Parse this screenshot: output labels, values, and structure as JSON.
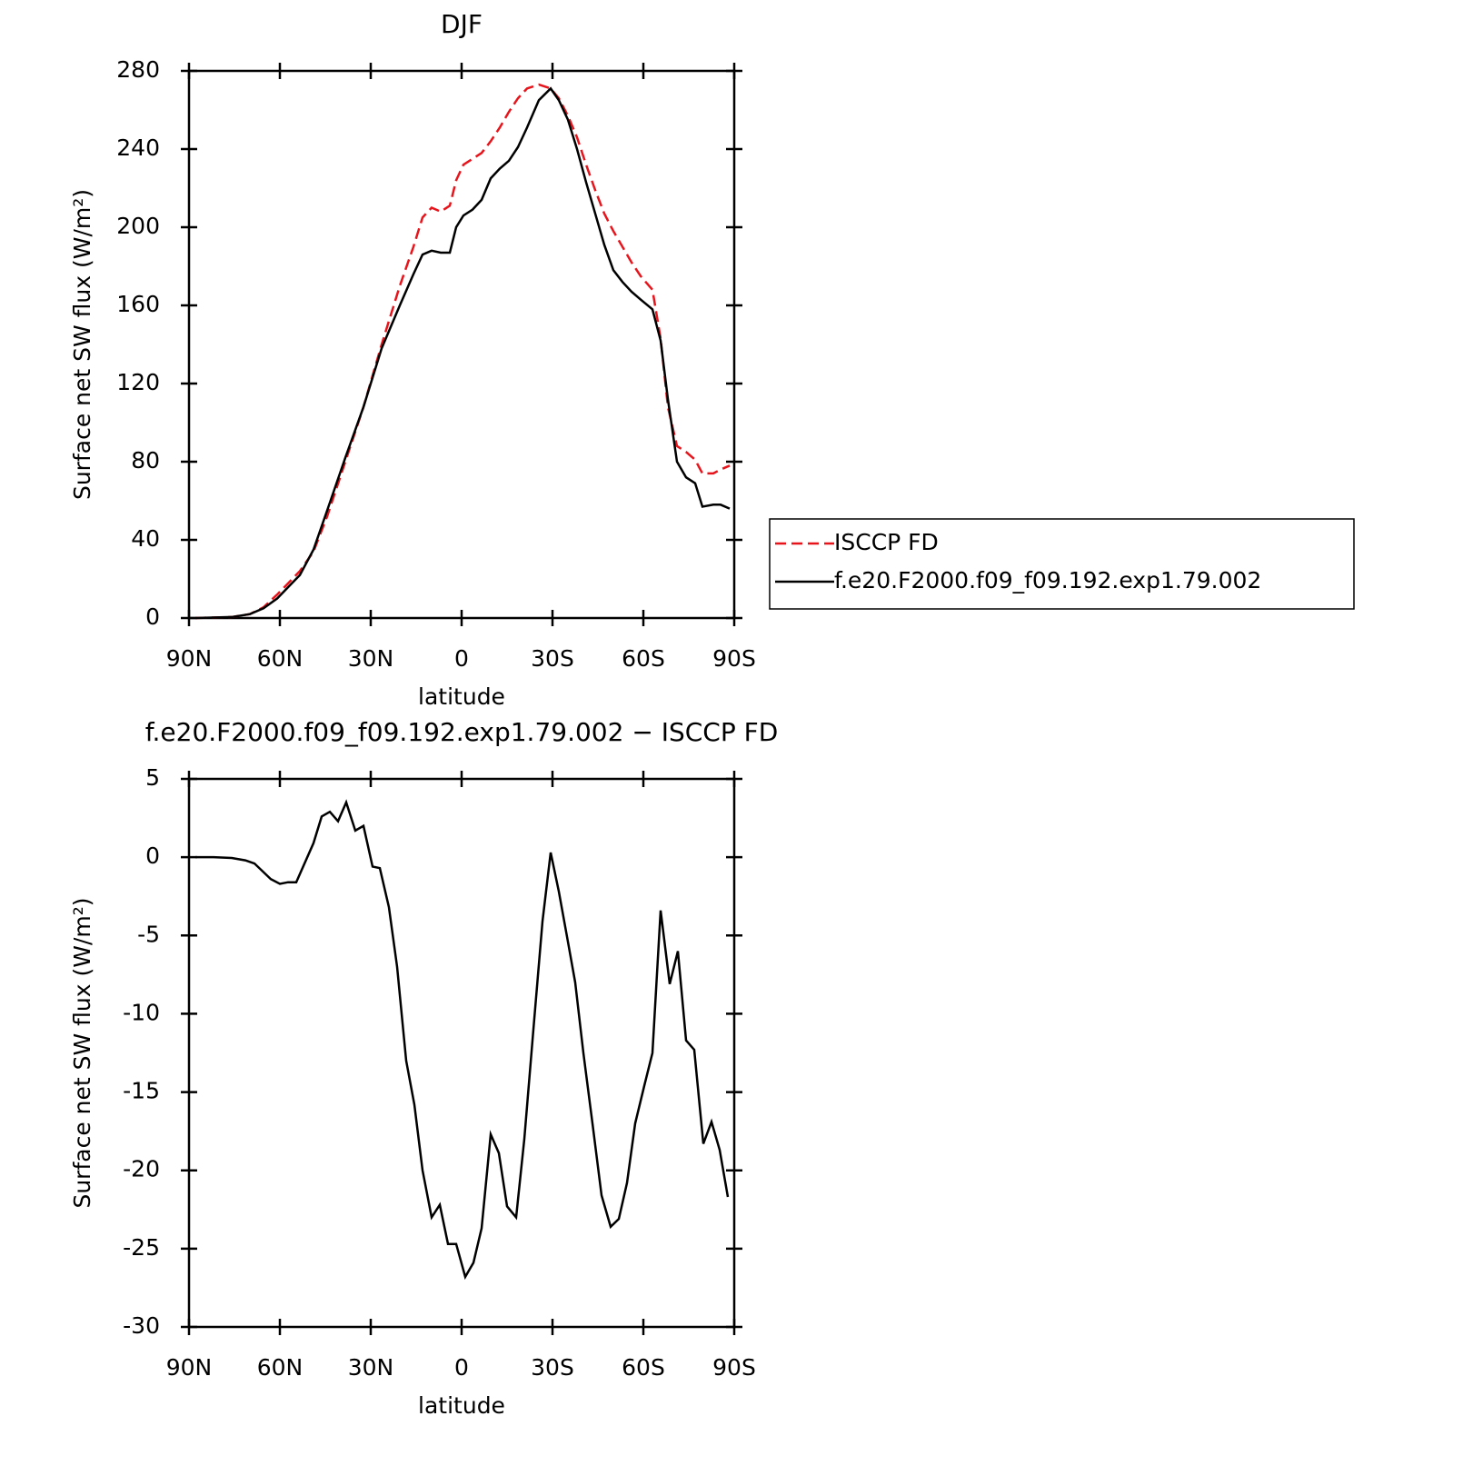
{
  "chart_data": [
    {
      "type": "line",
      "title": "DJF",
      "xlabel": "latitude",
      "ylabel": "Surface net SW flux (W/m²)",
      "x": [
        87.9,
        75.9,
        69.9,
        65.4,
        60.9,
        53.4,
        48.9,
        44.4,
        38.4,
        32.4,
        26.4,
        20.4,
        15.9,
        12.9,
        9.9,
        6.9,
        3.9,
        1.8,
        -0.6,
        -3.6,
        -6.6,
        -9.6,
        -12.6,
        -15.6,
        -18.6,
        -21.6,
        -25.5,
        -29.4,
        -32.1,
        -35.1,
        -38.1,
        -41.1,
        -44.1,
        -47.1,
        -50.1,
        -53.1,
        -56.1,
        -59.1,
        -63,
        -65.7,
        -68.1,
        -71.1,
        -74.1,
        -77.1,
        -79.5,
        -83.1,
        -85.5,
        -88.5
      ],
      "series": [
        {
          "name": "ISCCP FD",
          "color": "#e8141c",
          "linestyle": "dashed",
          "values": [
            0,
            0.5,
            2,
            5.5,
            12,
            24,
            34,
            52,
            80,
            108,
            140,
            170,
            190,
            205,
            210,
            208,
            211,
            224,
            232,
            235,
            238,
            244,
            251,
            259,
            266,
            271,
            273,
            271,
            266,
            257,
            246,
            232,
            219,
            207,
            198,
            190,
            182,
            175,
            168,
            143,
            108,
            88,
            85,
            81,
            74,
            74,
            76,
            78
          ]
        },
        {
          "name": "f.e20.F2000.f09_f09.192.exp1.79.002",
          "color": "#000000",
          "linestyle": "solid",
          "values": [
            0,
            0.5,
            2,
            5,
            10,
            22,
            35,
            55,
            82,
            108,
            138,
            160,
            176,
            186,
            188,
            187,
            187,
            200,
            206,
            209,
            214,
            225,
            230,
            234,
            241,
            251,
            265,
            271,
            265,
            255,
            240,
            223,
            207,
            191,
            178,
            172,
            167,
            163,
            158,
            142,
            112,
            80,
            72,
            69,
            57,
            58,
            58,
            56
          ]
        }
      ],
      "xlim": [
        90,
        -90
      ],
      "xticks": [
        {
          "value": 90,
          "label": "90N"
        },
        {
          "value": 60,
          "label": "60N"
        },
        {
          "value": 30,
          "label": "30N"
        },
        0,
        {
          "value": -30,
          "label": "30S"
        },
        {
          "value": -60,
          "label": "60S"
        },
        {
          "value": -90,
          "label": "90S"
        }
      ],
      "ylim": [
        0,
        280
      ],
      "yticks": [
        0,
        40,
        80,
        120,
        160,
        200,
        240,
        280
      ],
      "legend": "right"
    },
    {
      "type": "line",
      "title": "f.e20.F2000.f09_f09.192.exp1.79.002 − ISCCP FD",
      "xlabel": "latitude",
      "ylabel": "Surface net SW flux (W/m²)",
      "x": [
        87.9,
        81.9,
        75.9,
        71.4,
        68.4,
        63,
        60,
        57.3,
        54.6,
        48.9,
        46.2,
        43.5,
        40.8,
        38.1,
        35.1,
        32.4,
        29.4,
        27,
        24,
        21.3,
        18.3,
        15.6,
        12.9,
        9.9,
        7.2,
        4.5,
        1.8,
        -1.2,
        -3.9,
        -6.6,
        -9.6,
        -12.3,
        -15,
        -18,
        -20.7,
        -23.7,
        -26.7,
        -29.4,
        -32.1,
        -35.1,
        -37.5,
        -40.2,
        -43.2,
        -46.2,
        -49.2,
        -51.9,
        -54.6,
        -57.3,
        -60.3,
        -63,
        -65.7,
        -68.7,
        -71.4,
        -74.1,
        -76.8,
        -79.8,
        -82.5,
        -85.2,
        -87.9
      ],
      "values": [
        0,
        0,
        -0.05,
        -0.2,
        -0.4,
        -1.4,
        -1.7,
        -1.6,
        -1.6,
        0.9,
        2.6,
        2.9,
        2.3,
        3.5,
        1.7,
        2.0,
        -0.6,
        -0.7,
        -3.2,
        -7,
        -13,
        -15.8,
        -20,
        -23,
        -22.2,
        -24.7,
        -24.7,
        -26.8,
        -25.9,
        -23.7,
        -17.7,
        -18.9,
        -22.3,
        -23,
        -18,
        -11,
        -4.1,
        0.3,
        -2.2,
        -5.4,
        -8,
        -12.5,
        -17,
        -21.6,
        -23.6,
        -23.1,
        -20.8,
        -17,
        -14.6,
        -12.5,
        -3.4,
        -8.1,
        -6,
        -11.7,
        -12.3,
        -18.3,
        -16.9,
        -18.7,
        -21.7
      ],
      "color": "#000000",
      "xlim": [
        90,
        -90
      ],
      "xticks": [
        {
          "value": 90,
          "label": "90N"
        },
        {
          "value": 60,
          "label": "60N"
        },
        {
          "value": 30,
          "label": "30N"
        },
        0,
        {
          "value": -30,
          "label": "30S"
        },
        {
          "value": -60,
          "label": "60S"
        },
        {
          "value": -90,
          "label": "90S"
        }
      ],
      "ylim": [
        -30,
        5
      ],
      "yticks": [
        -30,
        -25,
        -20,
        -15,
        -10,
        -5,
        0,
        5
      ]
    }
  ]
}
